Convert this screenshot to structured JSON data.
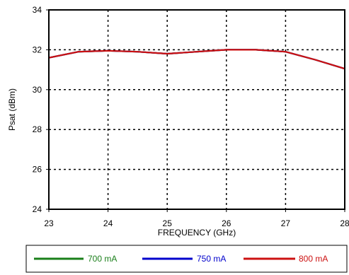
{
  "chart_data": {
    "type": "line",
    "xlabel": "FREQUENCY (GHz)",
    "ylabel": "Psat (dBm)",
    "xlim": [
      23,
      28
    ],
    "ylim": [
      24,
      34
    ],
    "x_ticks": [
      23,
      24,
      25,
      26,
      27,
      28
    ],
    "y_ticks": [
      24,
      26,
      28,
      30,
      32,
      34
    ],
    "grid": true,
    "legend_position": "bottom",
    "series": [
      {
        "name": "700 mA",
        "color": "#1a7f1a",
        "x": [
          23,
          23.5,
          24,
          24.5,
          25,
          25.5,
          26,
          26.5,
          27,
          27.5,
          28
        ],
        "y": [
          31.6,
          31.9,
          31.95,
          31.9,
          31.8,
          31.9,
          32.0,
          32.0,
          31.9,
          31.5,
          31.05
        ]
      },
      {
        "name": "750 mA",
        "color": "#0000cc",
        "x": [
          23,
          23.5,
          24,
          24.5,
          25,
          25.5,
          26,
          26.5,
          27,
          27.5,
          28
        ],
        "y": [
          31.6,
          31.9,
          31.95,
          31.9,
          31.8,
          31.9,
          32.0,
          32.0,
          31.9,
          31.5,
          31.05
        ]
      },
      {
        "name": "800 mA",
        "color": "#cc1111",
        "x": [
          23,
          23.5,
          24,
          24.5,
          25,
          25.5,
          26,
          26.5,
          27,
          27.5,
          28
        ],
        "y": [
          31.6,
          31.9,
          31.95,
          31.9,
          31.8,
          31.9,
          32.0,
          32.0,
          31.9,
          31.5,
          31.05
        ]
      }
    ]
  }
}
